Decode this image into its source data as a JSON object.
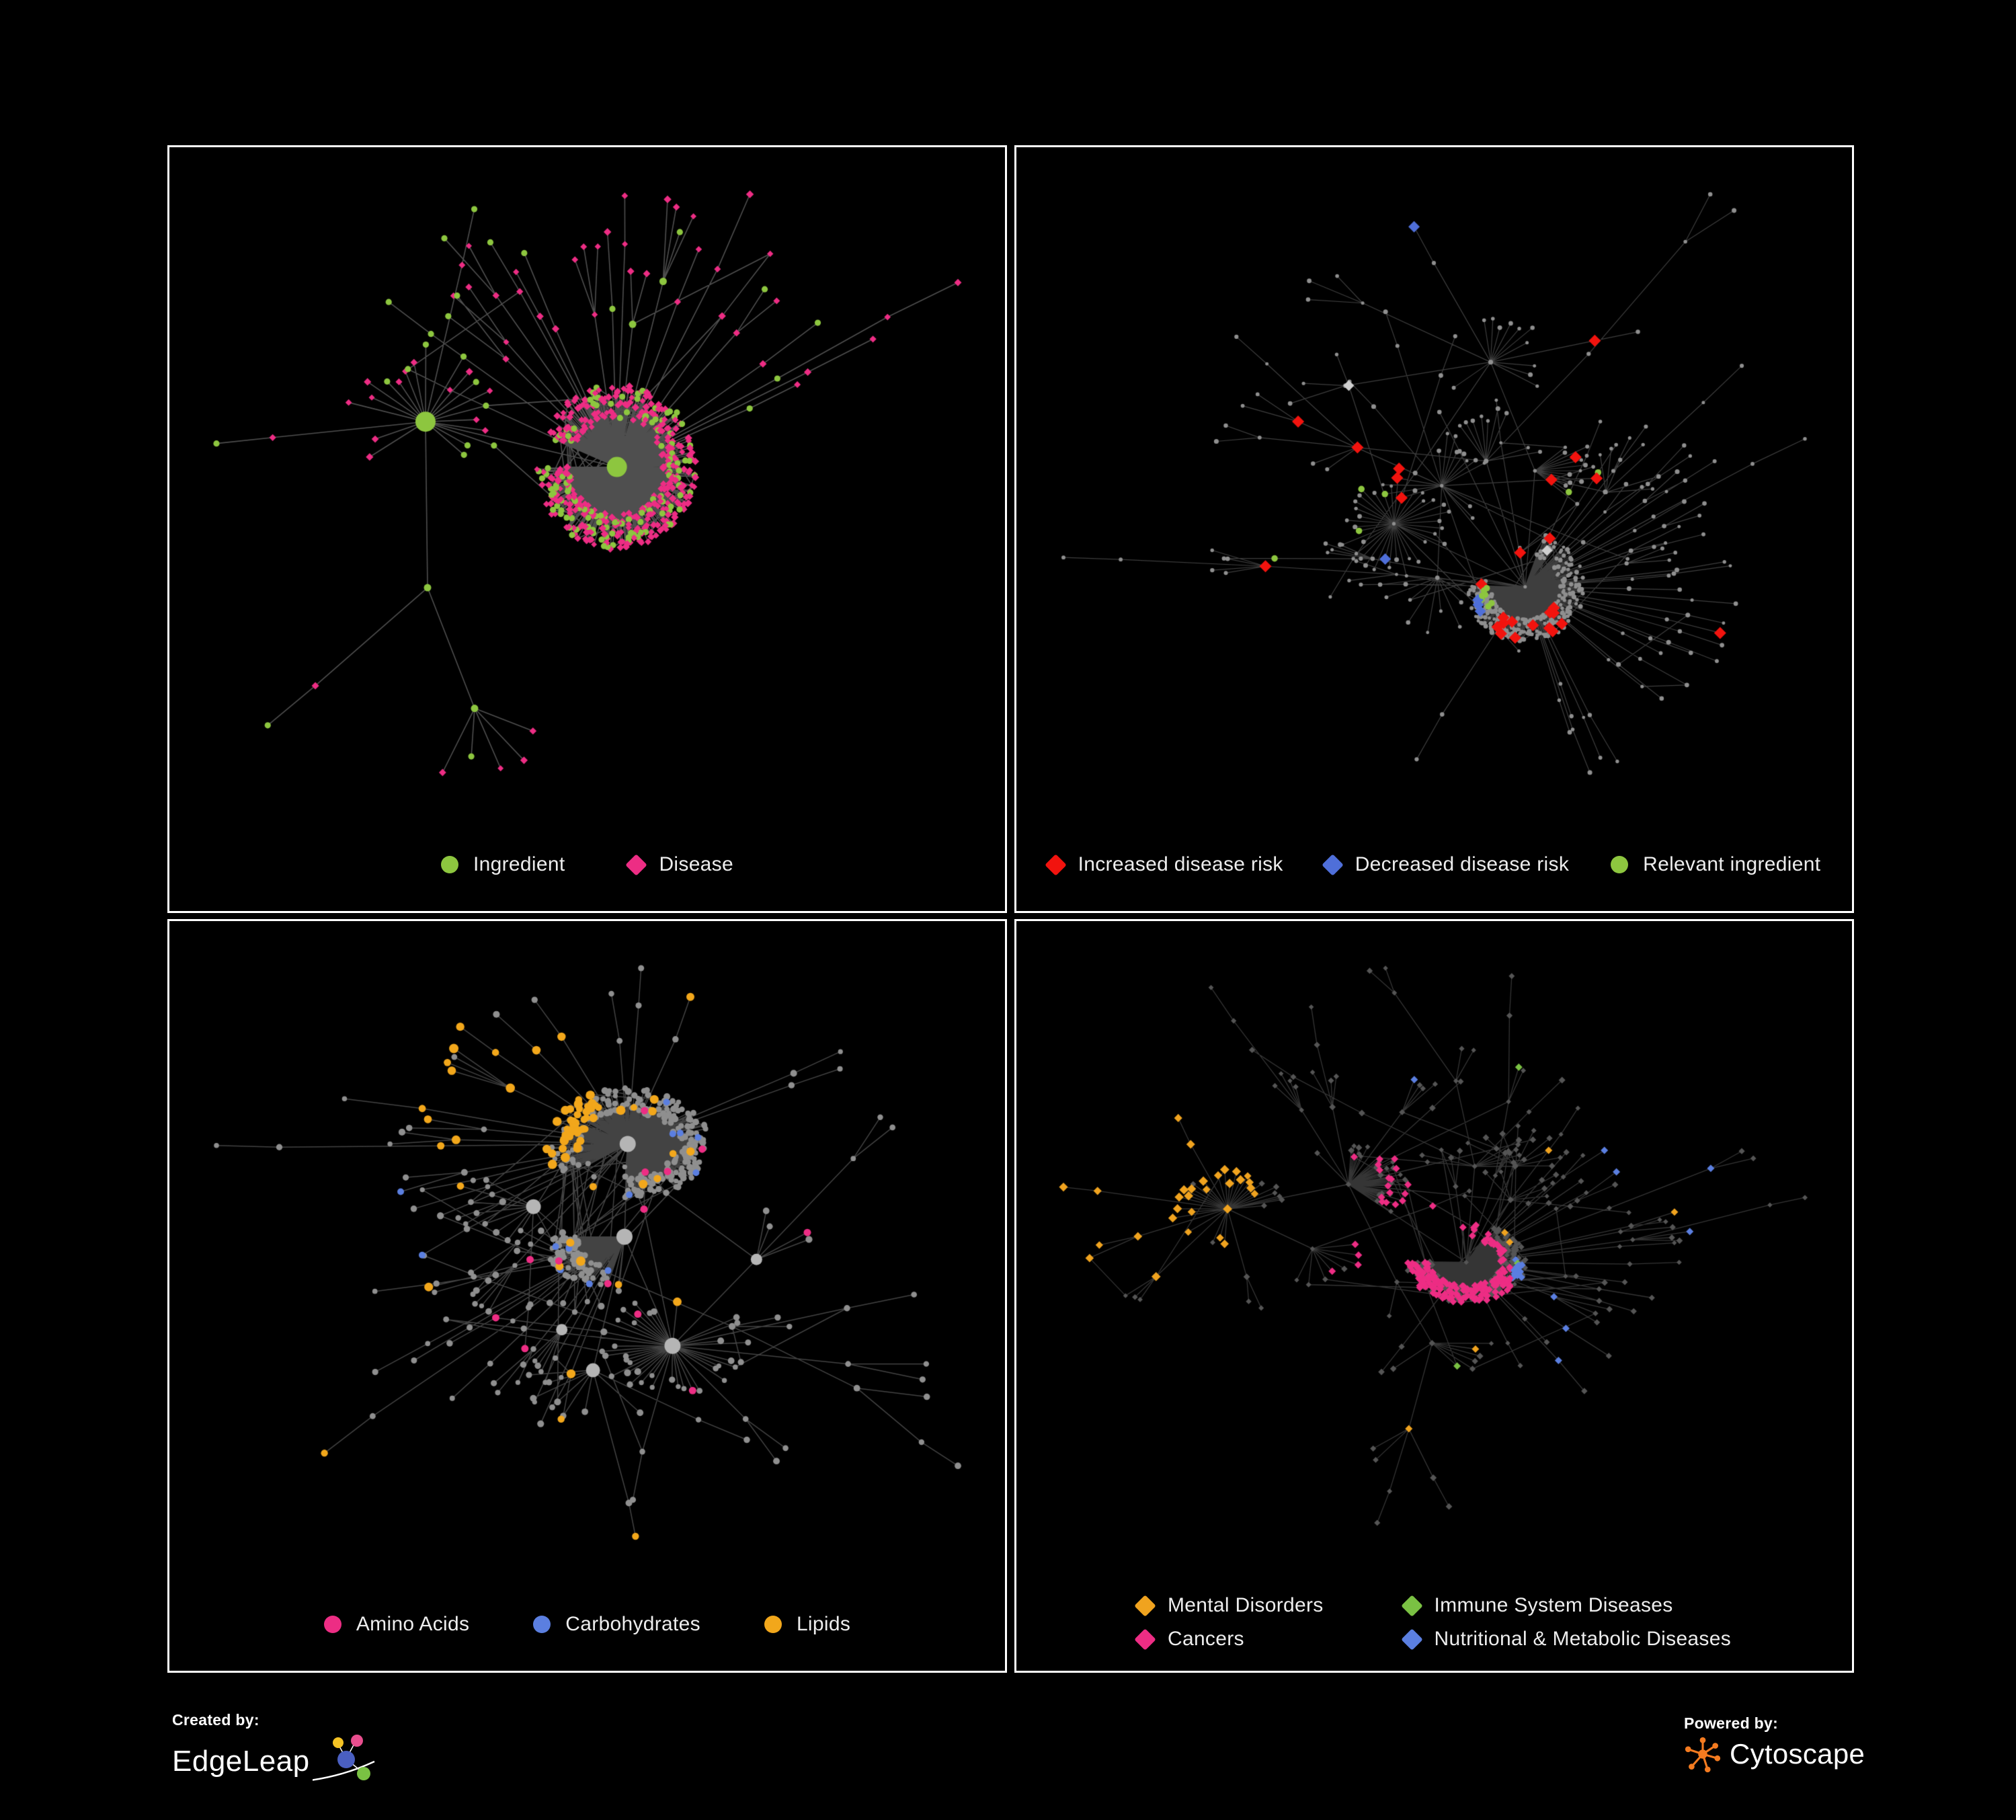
{
  "panels": [
    {
      "id": "ingredient-disease",
      "legend": [
        {
          "label": "Ingredient",
          "color": "#8dc63f",
          "shape": "circle"
        },
        {
          "label": "Disease",
          "color": "#ed2d84",
          "shape": "diamond"
        }
      ]
    },
    {
      "id": "disease-risk",
      "legend": [
        {
          "label": "Increased disease risk",
          "color": "#f2130e",
          "shape": "diamond"
        },
        {
          "label": "Decreased disease risk",
          "color": "#4f6fd9",
          "shape": "diamond"
        },
        {
          "label": "Relevant ingredient",
          "color": "#8dc63f",
          "shape": "circle"
        }
      ]
    },
    {
      "id": "macronutrients",
      "legend": [
        {
          "label": "Amino Acids",
          "color": "#ed2d84",
          "shape": "circle"
        },
        {
          "label": "Carbohydrates",
          "color": "#5b7fe0",
          "shape": "circle"
        },
        {
          "label": "Lipids",
          "color": "#f2a71b",
          "shape": "circle"
        }
      ]
    },
    {
      "id": "disease-categories",
      "legend": [
        {
          "label": "Mental Disorders",
          "color": "#f0a31f",
          "shape": "diamond"
        },
        {
          "label": "Immune System Diseases",
          "color": "#7ac143",
          "shape": "diamond"
        },
        {
          "label": "Cancers",
          "color": "#ed2d84",
          "shape": "diamond"
        },
        {
          "label": "Nutritional & Metabolic Diseases",
          "color": "#5b7fe0",
          "shape": "diamond"
        }
      ]
    }
  ],
  "footer": {
    "created_by": "Created by:",
    "edgeleap": "EdgeLeap",
    "powered_by": "Powered by:",
    "cytoscape": "Cytoscape"
  },
  "colors": {
    "background": "#000000",
    "panel_border": "#ffffff",
    "edge_gray": "#8a8a8a",
    "node_gray": "#8f8f8f",
    "node_dark_gray": "#555555",
    "gray_diamond": "#cfcfcf",
    "cytoscape_orange": "#f47b20",
    "edgeleap_yellow": "#f5c324",
    "edgeleap_pink": "#e84e8e",
    "edgeleap_blue": "#4a5fc1",
    "edgeleap_green": "#7ac143"
  }
}
